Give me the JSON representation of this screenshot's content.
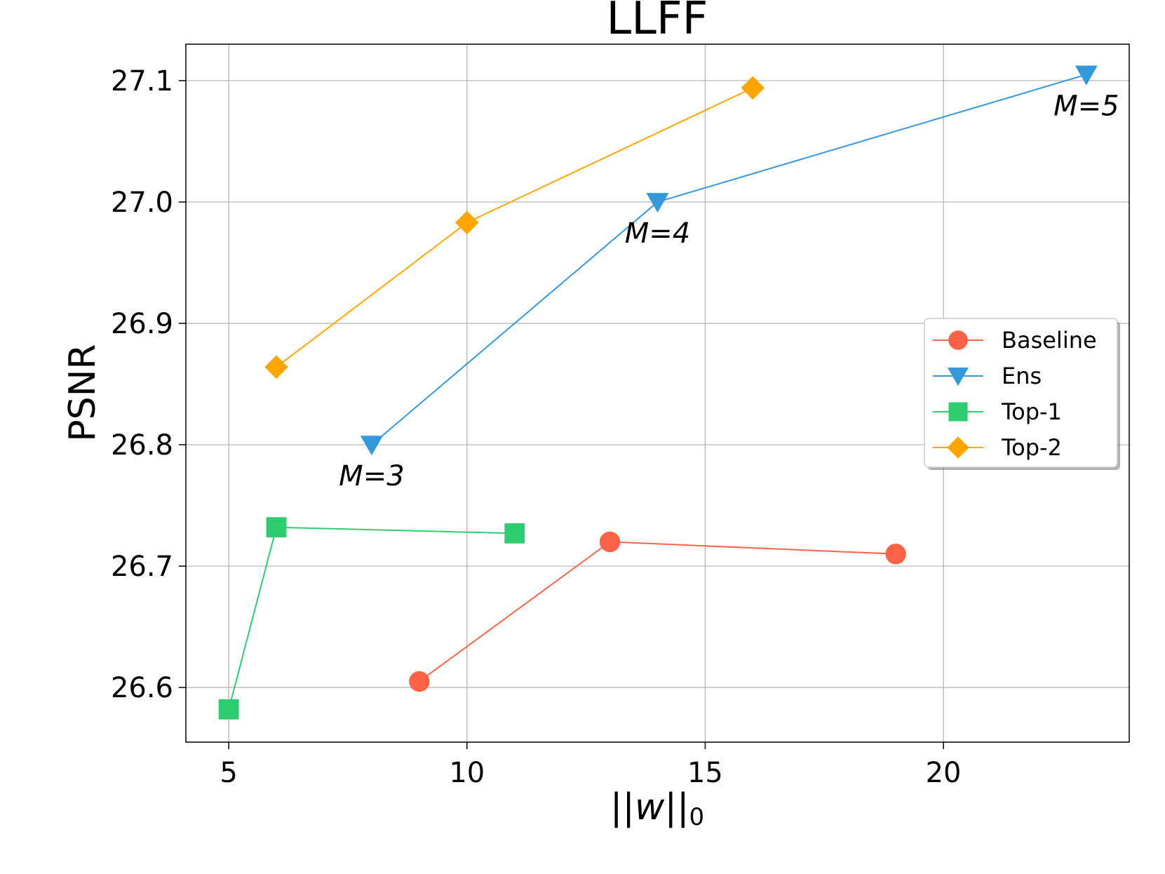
{
  "chart_data": {
    "type": "line",
    "title": "LLFF",
    "xlabel": "||w||",
    "xlabel_subscript": "0",
    "ylabel": "PSNR",
    "xlim": [
      4.1,
      23.9
    ],
    "ylim": [
      26.555,
      27.13
    ],
    "xticks": [
      5,
      10,
      15,
      20
    ],
    "yticks": [
      26.6,
      26.7,
      26.8,
      26.9,
      27.0,
      27.1
    ],
    "xtick_labels": [
      "5",
      "10",
      "15",
      "20"
    ],
    "ytick_labels": [
      "26.6",
      "26.7",
      "26.8",
      "26.9",
      "27.0",
      "27.1"
    ],
    "grid": true,
    "legend_position": "center-right",
    "series": [
      {
        "name": "Baseline",
        "marker": "circle",
        "color": "#ff6347",
        "x": [
          9,
          13,
          19
        ],
        "y": [
          26.605,
          26.72,
          26.71
        ]
      },
      {
        "name": "Ens",
        "marker": "triangle-down",
        "color": "#3498db",
        "x": [
          8,
          14,
          23
        ],
        "y": [
          26.8,
          27.0,
          27.105
        ]
      },
      {
        "name": "Top-1",
        "marker": "square",
        "color": "#2ecc71",
        "x": [
          5,
          6,
          11
        ],
        "y": [
          26.582,
          26.732,
          26.727
        ]
      },
      {
        "name": "Top-2",
        "marker": "diamond",
        "color": "#ffa500",
        "x": [
          6,
          10,
          16
        ],
        "y": [
          26.864,
          26.983,
          27.094
        ]
      }
    ],
    "annotations": [
      {
        "text": "M=3",
        "x": 8,
        "y": 26.8
      },
      {
        "text": "M=4",
        "x": 14,
        "y": 27.0
      },
      {
        "text": "M=5",
        "x": 23,
        "y": 27.105
      }
    ]
  }
}
